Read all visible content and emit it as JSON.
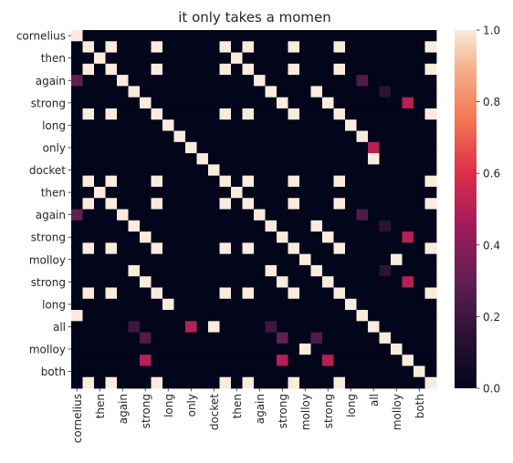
{
  "chart_data": {
    "type": "heatmap",
    "title": "it only takes a momen",
    "xlabel": "",
    "ylabel": "",
    "row_labels": [
      "cornelius",
      "",
      "then",
      "",
      "again",
      "",
      "strong",
      "",
      "long",
      "",
      "only",
      "",
      "docket",
      "",
      "then",
      "",
      "again",
      "",
      "strong",
      "",
      "molloy",
      "",
      "strong",
      "",
      "long",
      "",
      "all",
      "",
      "molloy",
      "",
      "both",
      ""
    ],
    "col_labels": [
      "cornelius",
      "",
      "then",
      "",
      "again",
      "",
      "strong",
      "",
      "long",
      "",
      "only",
      "",
      "docket",
      "",
      "then",
      "",
      "again",
      "",
      "strong",
      "",
      "molloy",
      "",
      "strong",
      "",
      "long",
      "",
      "all",
      "",
      "molloy",
      "",
      "both",
      ""
    ],
    "values": [
      [
        1,
        0,
        0,
        0,
        0,
        0,
        0,
        0,
        0,
        0,
        0,
        0,
        0,
        0,
        0,
        0,
        0,
        0,
        0,
        0,
        0,
        0,
        0,
        0,
        0,
        0,
        0,
        0,
        0,
        0,
        0,
        0
      ],
      [
        0,
        1,
        0,
        1,
        0,
        0,
        0,
        1,
        0,
        0,
        0,
        0,
        0,
        1,
        0,
        1,
        0,
        0,
        0,
        1,
        0,
        0,
        0,
        1,
        0,
        0,
        0,
        0,
        0,
        0,
        0,
        1
      ],
      [
        0,
        0,
        1,
        0,
        0,
        0,
        0,
        0,
        0,
        0,
        0,
        0,
        0,
        0,
        1,
        0,
        0,
        0,
        0,
        0,
        0,
        0,
        0,
        0,
        0,
        0,
        0,
        0,
        0,
        0,
        0,
        0
      ],
      [
        0,
        1,
        0,
        1,
        0,
        0,
        0,
        1,
        0,
        0,
        0,
        0,
        0,
        1,
        0,
        1,
        0,
        0,
        0,
        1,
        0,
        0,
        0,
        1,
        0,
        0,
        0,
        0,
        0,
        0,
        0,
        1
      ],
      [
        0.3,
        0,
        0,
        0,
        1,
        0,
        0,
        0,
        0,
        0,
        0,
        0,
        0,
        0,
        0,
        0,
        1,
        0,
        0,
        0,
        0,
        0,
        0,
        0,
        0,
        0.25,
        0,
        0,
        0,
        0,
        0,
        0
      ],
      [
        0,
        0,
        0,
        0,
        0,
        1,
        0,
        0,
        0,
        0,
        0,
        0,
        0,
        0,
        0,
        0,
        0,
        1,
        0,
        0,
        0,
        1,
        0,
        0,
        0,
        0,
        0,
        0.15,
        0,
        0,
        0,
        0
      ],
      [
        0,
        0,
        0,
        0,
        0,
        0,
        1,
        0,
        0,
        0,
        0,
        0,
        0,
        0,
        0,
        0,
        0,
        0,
        1,
        0,
        0,
        0,
        1,
        0,
        0,
        0,
        0,
        0,
        0,
        0.5,
        0,
        0
      ],
      [
        0,
        1,
        0,
        1,
        0,
        0,
        0,
        1,
        0,
        0,
        0,
        0,
        0,
        1,
        0,
        1,
        0,
        0,
        0,
        1,
        0,
        0,
        0,
        1,
        0,
        0,
        0,
        0,
        0,
        0,
        0,
        1
      ],
      [
        0,
        0,
        0,
        0,
        0,
        0,
        0,
        0,
        1,
        0,
        0,
        0,
        0,
        0,
        0,
        0,
        0,
        0,
        0,
        0,
        0,
        0,
        0,
        0,
        1,
        0,
        0,
        0,
        0,
        0,
        0,
        0
      ],
      [
        0,
        0,
        0,
        0,
        0,
        0,
        0,
        0,
        0,
        1,
        0,
        0,
        0,
        0,
        0,
        0,
        0,
        0,
        0,
        0,
        0,
        0,
        0,
        0,
        0,
        1,
        0,
        0,
        0,
        0,
        0,
        0
      ],
      [
        0,
        0,
        0,
        0,
        0,
        0,
        0,
        0,
        0,
        0,
        1,
        0,
        0,
        0,
        0,
        0,
        0,
        0,
        0,
        0,
        0,
        0,
        0,
        0,
        0,
        0,
        0.5,
        0,
        0,
        0,
        0,
        0
      ],
      [
        0,
        0,
        0,
        0,
        0,
        0,
        0,
        0,
        0,
        0,
        0,
        1,
        0,
        0,
        0,
        0,
        0,
        0,
        0,
        0,
        0,
        0,
        0,
        0,
        0,
        0,
        1,
        0,
        0,
        0,
        0,
        0
      ],
      [
        0,
        0,
        0,
        0,
        0,
        0,
        0,
        0,
        0,
        0,
        0,
        0,
        1,
        0,
        0,
        0,
        0,
        0,
        0,
        0,
        0,
        0,
        0,
        0,
        0,
        0,
        0,
        0,
        0,
        0,
        0,
        0
      ],
      [
        0,
        1,
        0,
        1,
        0,
        0,
        0,
        1,
        0,
        0,
        0,
        0,
        0,
        1,
        0,
        1,
        0,
        0,
        0,
        1,
        0,
        0,
        0,
        1,
        0,
        0,
        0,
        0,
        0,
        0,
        0,
        1
      ],
      [
        0,
        0,
        1,
        0,
        0,
        0,
        0,
        0,
        0,
        0,
        0,
        0,
        0,
        0,
        1,
        0,
        0,
        0,
        0,
        0,
        0,
        0,
        0,
        0,
        0,
        0,
        0,
        0,
        0,
        0,
        0,
        0
      ],
      [
        0,
        1,
        0,
        1,
        0,
        0,
        0,
        1,
        0,
        0,
        0,
        0,
        0,
        1,
        0,
        1,
        0,
        0,
        0,
        1,
        0,
        0,
        0,
        1,
        0,
        0,
        0,
        0,
        0,
        0,
        0,
        1
      ],
      [
        0.3,
        0,
        0,
        0,
        1,
        0,
        0,
        0,
        0,
        0,
        0,
        0,
        0,
        0,
        0,
        0,
        1,
        0,
        0,
        0,
        0,
        0,
        0,
        0,
        0,
        0.25,
        0,
        0,
        0,
        0,
        0,
        0
      ],
      [
        0,
        0,
        0,
        0,
        0,
        1,
        0,
        0,
        0,
        0,
        0,
        0,
        0,
        0,
        0,
        0,
        0,
        1,
        0,
        0,
        0,
        1,
        0,
        0,
        0,
        0,
        0,
        0.15,
        0,
        0,
        0,
        0
      ],
      [
        0,
        0,
        0,
        0,
        0,
        0,
        1,
        0,
        0,
        0,
        0,
        0,
        0,
        0,
        0,
        0,
        0,
        0,
        1,
        0,
        0,
        0,
        1,
        0,
        0,
        0,
        0,
        0,
        0,
        0.5,
        0,
        0
      ],
      [
        0,
        1,
        0,
        1,
        0,
        0,
        0,
        1,
        0,
        0,
        0,
        0,
        0,
        1,
        0,
        1,
        0,
        0,
        0,
        1,
        0,
        0,
        0,
        1,
        0,
        0,
        0,
        0,
        0,
        0,
        0,
        1
      ],
      [
        0,
        0,
        0,
        0,
        0,
        0,
        0,
        0,
        0,
        0,
        0,
        0,
        0,
        0,
        0,
        0,
        0,
        0,
        0,
        0,
        1,
        0,
        0,
        0,
        0,
        0,
        0,
        0,
        1,
        0,
        0,
        0
      ],
      [
        0,
        0,
        0,
        0,
        0,
        1,
        0,
        0,
        0,
        0,
        0,
        0,
        0,
        0,
        0,
        0,
        0,
        1,
        0,
        0,
        0,
        1,
        0,
        0,
        0,
        0,
        0,
        0.15,
        0,
        0,
        0,
        0
      ],
      [
        0,
        0,
        0,
        0,
        0,
        0,
        1,
        0,
        0,
        0,
        0,
        0,
        0,
        0,
        0,
        0,
        0,
        0,
        1,
        0,
        0,
        0,
        1,
        0,
        0,
        0,
        0,
        0,
        0,
        0.5,
        0,
        0
      ],
      [
        0,
        1,
        0,
        1,
        0,
        0,
        0,
        1,
        0,
        0,
        0,
        0,
        0,
        1,
        0,
        1,
        0,
        0,
        0,
        1,
        0,
        0,
        0,
        1,
        0,
        0,
        0,
        0,
        0,
        0,
        0,
        1
      ],
      [
        0,
        0,
        0,
        0,
        0,
        0,
        0,
        0,
        1,
        0,
        0,
        0,
        0,
        0,
        0,
        0,
        0,
        0,
        0,
        0,
        0,
        0,
        0,
        0,
        1,
        0,
        0,
        0,
        0,
        0,
        0,
        0
      ],
      [
        1,
        0,
        0,
        0,
        0,
        0,
        0,
        0,
        0,
        0,
        0,
        0,
        0,
        0,
        0,
        0,
        0,
        0,
        0,
        0,
        0,
        0,
        0,
        0,
        0,
        1,
        0,
        0,
        0,
        0,
        0,
        0
      ],
      [
        0,
        0,
        0,
        0,
        0,
        0.2,
        0,
        0,
        0,
        0,
        0.5,
        0,
        1,
        0,
        0,
        0,
        0,
        0.2,
        0,
        0,
        0,
        0,
        0,
        0,
        0,
        0,
        1,
        0,
        0,
        0,
        0,
        0
      ],
      [
        0,
        0,
        0,
        0,
        0,
        0,
        0.25,
        0,
        0,
        0,
        0,
        0,
        0,
        0,
        0,
        0,
        0,
        0,
        0.3,
        0,
        0,
        0.25,
        0,
        0,
        0,
        0,
        0,
        1,
        0,
        0,
        0,
        0
      ],
      [
        0,
        0,
        0,
        0,
        0,
        0,
        0,
        0,
        0,
        0,
        0,
        0,
        0,
        0,
        0,
        0,
        0,
        0,
        0,
        0,
        1,
        0,
        0,
        0,
        0,
        0,
        0,
        0,
        1,
        0,
        0,
        0
      ],
      [
        0,
        0,
        0,
        0,
        0,
        0,
        0.5,
        0,
        0,
        0,
        0,
        0,
        0,
        0,
        0,
        0,
        0,
        0,
        0.5,
        0,
        0,
        0,
        0.5,
        0,
        0,
        0,
        0,
        0,
        0,
        1,
        0,
        0
      ],
      [
        0,
        0,
        0,
        0,
        0,
        0,
        0,
        0,
        0,
        0,
        0,
        0,
        0,
        0,
        0,
        0,
        0,
        0,
        0,
        0,
        0,
        0,
        0,
        0,
        0,
        0,
        0,
        0,
        0,
        0,
        1,
        0
      ],
      [
        0,
        1,
        0,
        1,
        0,
        0,
        0,
        1,
        0,
        0,
        0,
        0,
        0,
        1,
        0,
        1,
        0,
        0,
        0,
        1,
        0,
        0,
        0,
        1,
        0,
        0,
        0,
        0,
        0,
        0,
        0,
        1
      ]
    ],
    "colorbar": {
      "min": 0.0,
      "max": 1.0,
      "ticks": [
        "0.0",
        "0.2",
        "0.4",
        "0.6",
        "0.8",
        "1.0"
      ],
      "colormap": "rocket"
    },
    "grid": false,
    "legend": "colorbar-right"
  }
}
